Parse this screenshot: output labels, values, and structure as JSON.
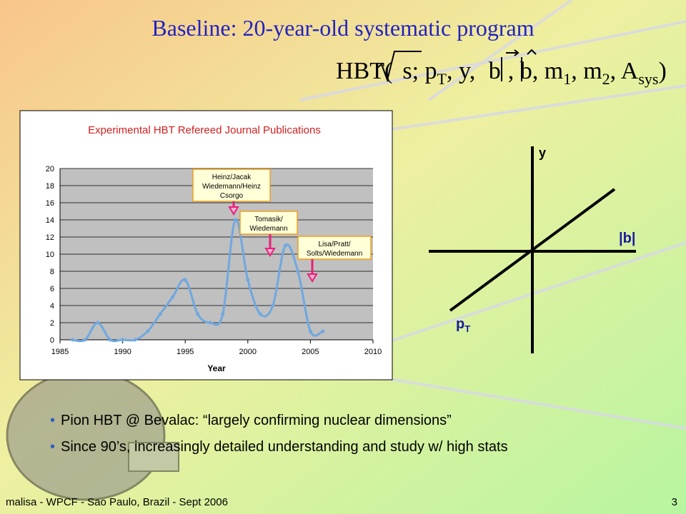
{
  "slide": {
    "title": "Baseline: 20-year-old systematic program",
    "formula": [
      "HBT(",
      "s",
      "; p",
      "T",
      ", y, ",
      "b",
      ", ",
      "b",
      ", m",
      "1",
      ", m",
      "2",
      ", A",
      "sys",
      ")"
    ],
    "axes_labels": {
      "y": "y",
      "b": "|b|",
      "pt": [
        "p",
        "T"
      ]
    },
    "bullets": [
      "Pion HBT @ Bevalac: “largely confirming nuclear dimensions”",
      "Since 90’s, increasingly detailed understanding and study w/ high stats"
    ],
    "footer": "malisa - WPCF - Sao Paulo, Brazil - Sept 2006",
    "page": "3"
  },
  "chart_data": {
    "type": "line",
    "title": "Experimental HBT Refereed Journal Publications",
    "x_label": "Year",
    "x": [
      1986,
      1987,
      1988,
      1989,
      1990,
      1991,
      1992,
      1993,
      1994,
      1995,
      1996,
      1997,
      1998,
      1999,
      2000,
      2001,
      2002,
      2003,
      2004,
      2005,
      2006
    ],
    "series": [
      {
        "name": "Publications",
        "color": "#6fa8e0",
        "values": [
          0,
          0,
          2,
          0,
          0,
          0,
          1,
          3,
          5,
          7,
          3,
          2,
          3,
          14,
          7,
          3,
          4,
          11,
          8,
          1,
          1
        ]
      }
    ],
    "xlim": [
      1985,
      2010
    ],
    "xticks": [
      1985,
      1990,
      1995,
      2000,
      2005,
      2010
    ],
    "ylim": [
      0,
      20
    ],
    "yticks": [
      0,
      2,
      4,
      6,
      8,
      10,
      12,
      14,
      16,
      18,
      20
    ],
    "grid": true,
    "annotations": [
      [
        "Heinz/Jacak",
        "Wiedemann/Heinz",
        "Csorgo"
      ],
      [
        "Tomasik/",
        "Wiedemann"
      ],
      [
        "Lisa/Pratt/",
        "Solts/Wiedemann"
      ]
    ]
  }
}
